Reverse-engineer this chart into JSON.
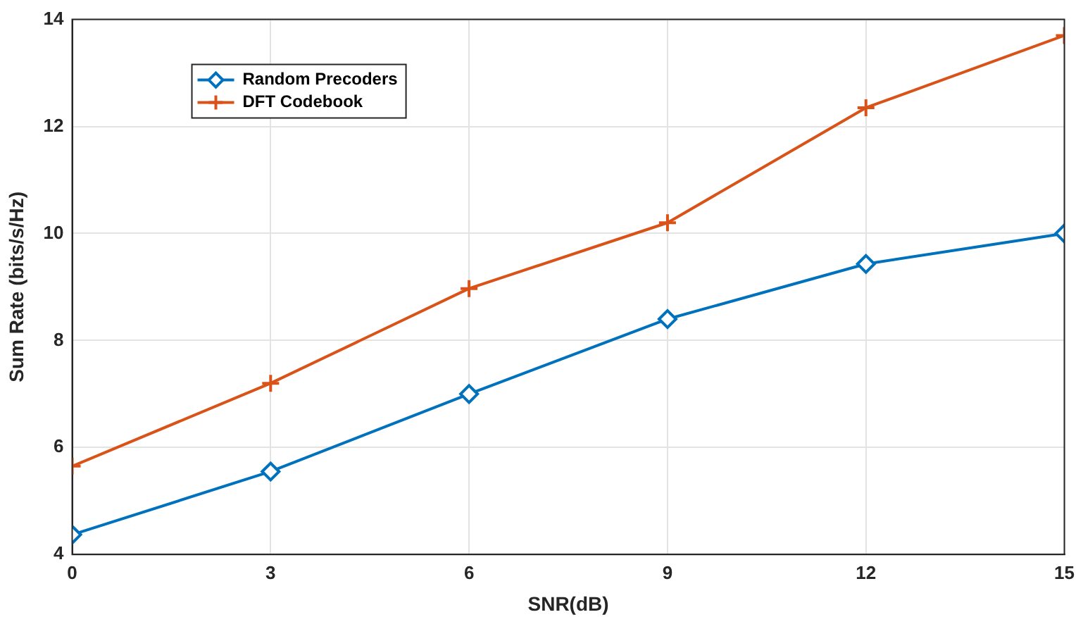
{
  "chart_data": {
    "type": "line",
    "xlabel": "SNR(dB)",
    "ylabel": "Sum Rate (bits/s/Hz)",
    "x": [
      0,
      3,
      6,
      9,
      12,
      15
    ],
    "series": [
      {
        "name": "Random Precoders",
        "color": "#0072bd",
        "marker": "diamond",
        "values": [
          4.37,
          5.55,
          7.0,
          8.4,
          9.43,
          10.0
        ]
      },
      {
        "name": "DFT Codebook",
        "color": "#d95319",
        "marker": "cross",
        "values": [
          5.65,
          7.2,
          8.97,
          10.2,
          12.35,
          13.7
        ]
      }
    ],
    "xlim": [
      0,
      15
    ],
    "xticks": [
      0,
      3,
      6,
      9,
      12,
      15
    ],
    "ylim": [
      4,
      14
    ],
    "yticks": [
      4,
      6,
      8,
      10,
      12,
      14
    ],
    "grid": true,
    "legend": "top left",
    "line_style": "solid"
  }
}
